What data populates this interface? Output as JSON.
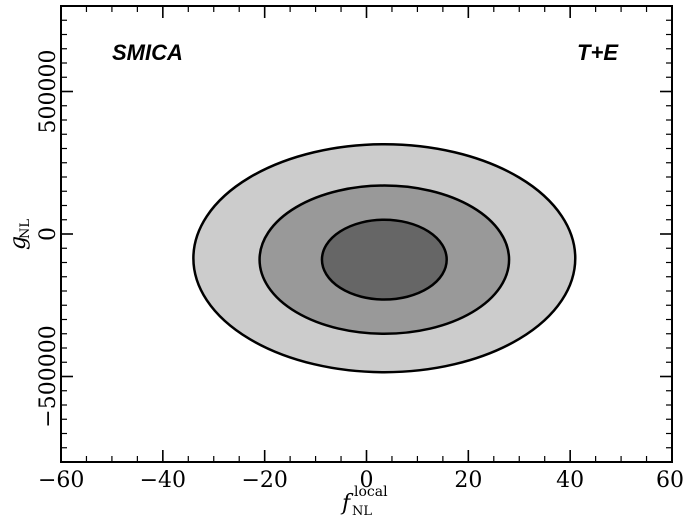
{
  "chart_data": {
    "type": "contour",
    "labels": {
      "left": "SMICA",
      "right": "T+E"
    },
    "xlabel": {
      "main": "f",
      "sub": "NL",
      "sup": "local"
    },
    "ylabel": {
      "main": "g",
      "sub": "NL"
    },
    "xlim": [
      -60,
      60
    ],
    "ylim": [
      -800000,
      800000
    ],
    "xticks": [
      -60,
      -40,
      -20,
      0,
      20,
      40,
      60
    ],
    "yticks": [
      -500000,
      0,
      500000
    ],
    "xtick_labels": [
      "−60",
      "−40",
      "−20",
      "0",
      "20",
      "40",
      "60"
    ],
    "ytick_labels": [
      "−500000",
      "0",
      "500000"
    ],
    "contours": [
      {
        "level": "outer",
        "fill": "#cccccc",
        "center": [
          3.5,
          -85000
        ],
        "half_width": 37.5,
        "half_height": 400000
      },
      {
        "level": "middle",
        "fill": "#999999",
        "center": [
          3.5,
          -90000
        ],
        "half_width": 24.5,
        "half_height": 260000
      },
      {
        "level": "inner",
        "fill": "#666666",
        "center": [
          3.5,
          -90000
        ],
        "half_width": 12.25,
        "half_height": 140000
      }
    ]
  }
}
